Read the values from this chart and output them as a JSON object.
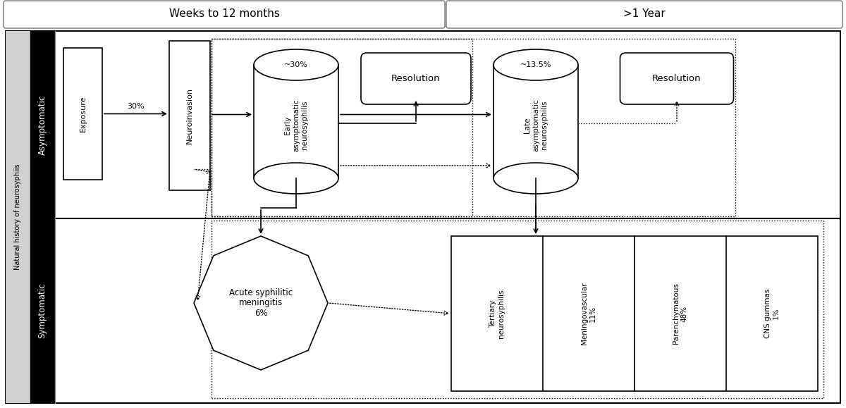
{
  "fig_width": 12.0,
  "fig_height": 5.79,
  "bg_color": "#ffffff",
  "header1_text": "Weeks to 12 months",
  "header2_text": ">1 Year",
  "ylabel_main": "Natural history of neurosyphiis",
  "ylabel_top": "Asymptomatic",
  "ylabel_bottom": "Symptomatic",
  "exposure_text": "Exposure",
  "neuroinvasion_text": "Neuroinvasion",
  "arrow30_text": "30%",
  "early_neuro_top": "~30%",
  "early_neuro_text": "Early\nasymptomatic\nneurosyphilis",
  "resolution1_text": "Resolution",
  "late_neuro_top": "~13.5%",
  "late_neuro_text": "Late\nasymptomatic\nneurosyphilis",
  "resolution2_text": "Resolution",
  "meningitis_text": "Acute syphilitic\nmeningitis\n6%",
  "col_labels": [
    "Tertiary\nneurosyphilis",
    "Meningovascular\n11%",
    "Parenchymatous\n48%",
    "CNS gummas\n1%"
  ]
}
